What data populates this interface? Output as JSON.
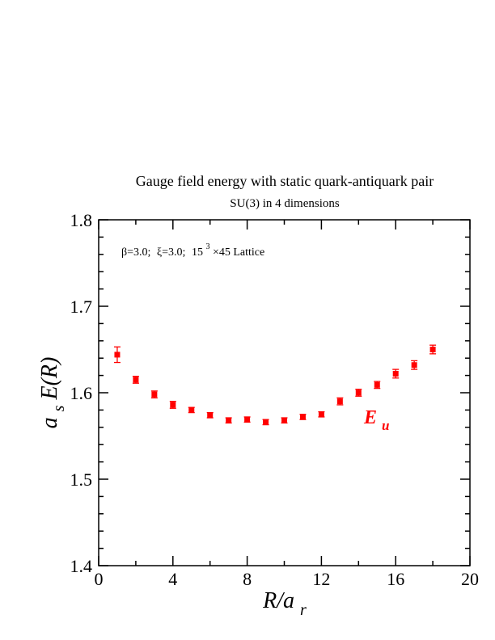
{
  "chart_data": {
    "type": "scatter",
    "title": "Gauge field energy with static quark-antiquark pair",
    "subtitle": "SU(3) in 4 dimensions",
    "annotation": {
      "beta": "β=3.0;",
      "xi": "ξ=3.0;",
      "lattice_base": "15",
      "lattice_exp": "3",
      "lattice_rest": "×45 Lattice"
    },
    "xlabel": {
      "main": "R/a",
      "sub": "r"
    },
    "ylabel": {
      "a": "a",
      "sub": "s",
      "rest": "E(R)"
    },
    "xlim": [
      0,
      20
    ],
    "ylim": [
      1.4,
      1.8
    ],
    "xticks": [
      0,
      4,
      8,
      12,
      16,
      20
    ],
    "yticks": [
      1.4,
      1.5,
      1.6,
      1.7,
      1.8
    ],
    "xtick_labels": [
      "0",
      "4",
      "8",
      "12",
      "16",
      "20"
    ],
    "ytick_labels": [
      "1.4",
      "1.5",
      "1.6",
      "1.7",
      "1.8"
    ],
    "grid": false,
    "series": [
      {
        "name": "E_u",
        "label_main": "E",
        "label_sub": "u",
        "color": "#ff0000",
        "points": [
          {
            "x": 1,
            "y": 1.644,
            "err": 0.009
          },
          {
            "x": 2,
            "y": 1.615,
            "err": 0.004
          },
          {
            "x": 3,
            "y": 1.598,
            "err": 0.004
          },
          {
            "x": 4,
            "y": 1.586,
            "err": 0.004
          },
          {
            "x": 5,
            "y": 1.58,
            "err": 0.003
          },
          {
            "x": 6,
            "y": 1.574,
            "err": 0.003
          },
          {
            "x": 7,
            "y": 1.568,
            "err": 0.003
          },
          {
            "x": 8,
            "y": 1.569,
            "err": 0.003
          },
          {
            "x": 9,
            "y": 1.566,
            "err": 0.003
          },
          {
            "x": 10,
            "y": 1.568,
            "err": 0.003
          },
          {
            "x": 11,
            "y": 1.572,
            "err": 0.003
          },
          {
            "x": 12,
            "y": 1.575,
            "err": 0.003
          },
          {
            "x": 13,
            "y": 1.59,
            "err": 0.004
          },
          {
            "x": 14,
            "y": 1.6,
            "err": 0.004
          },
          {
            "x": 15,
            "y": 1.609,
            "err": 0.004
          },
          {
            "x": 16,
            "y": 1.622,
            "err": 0.005
          },
          {
            "x": 17,
            "y": 1.632,
            "err": 0.005
          },
          {
            "x": 18,
            "y": 1.65,
            "err": 0.005
          }
        ]
      }
    ]
  }
}
